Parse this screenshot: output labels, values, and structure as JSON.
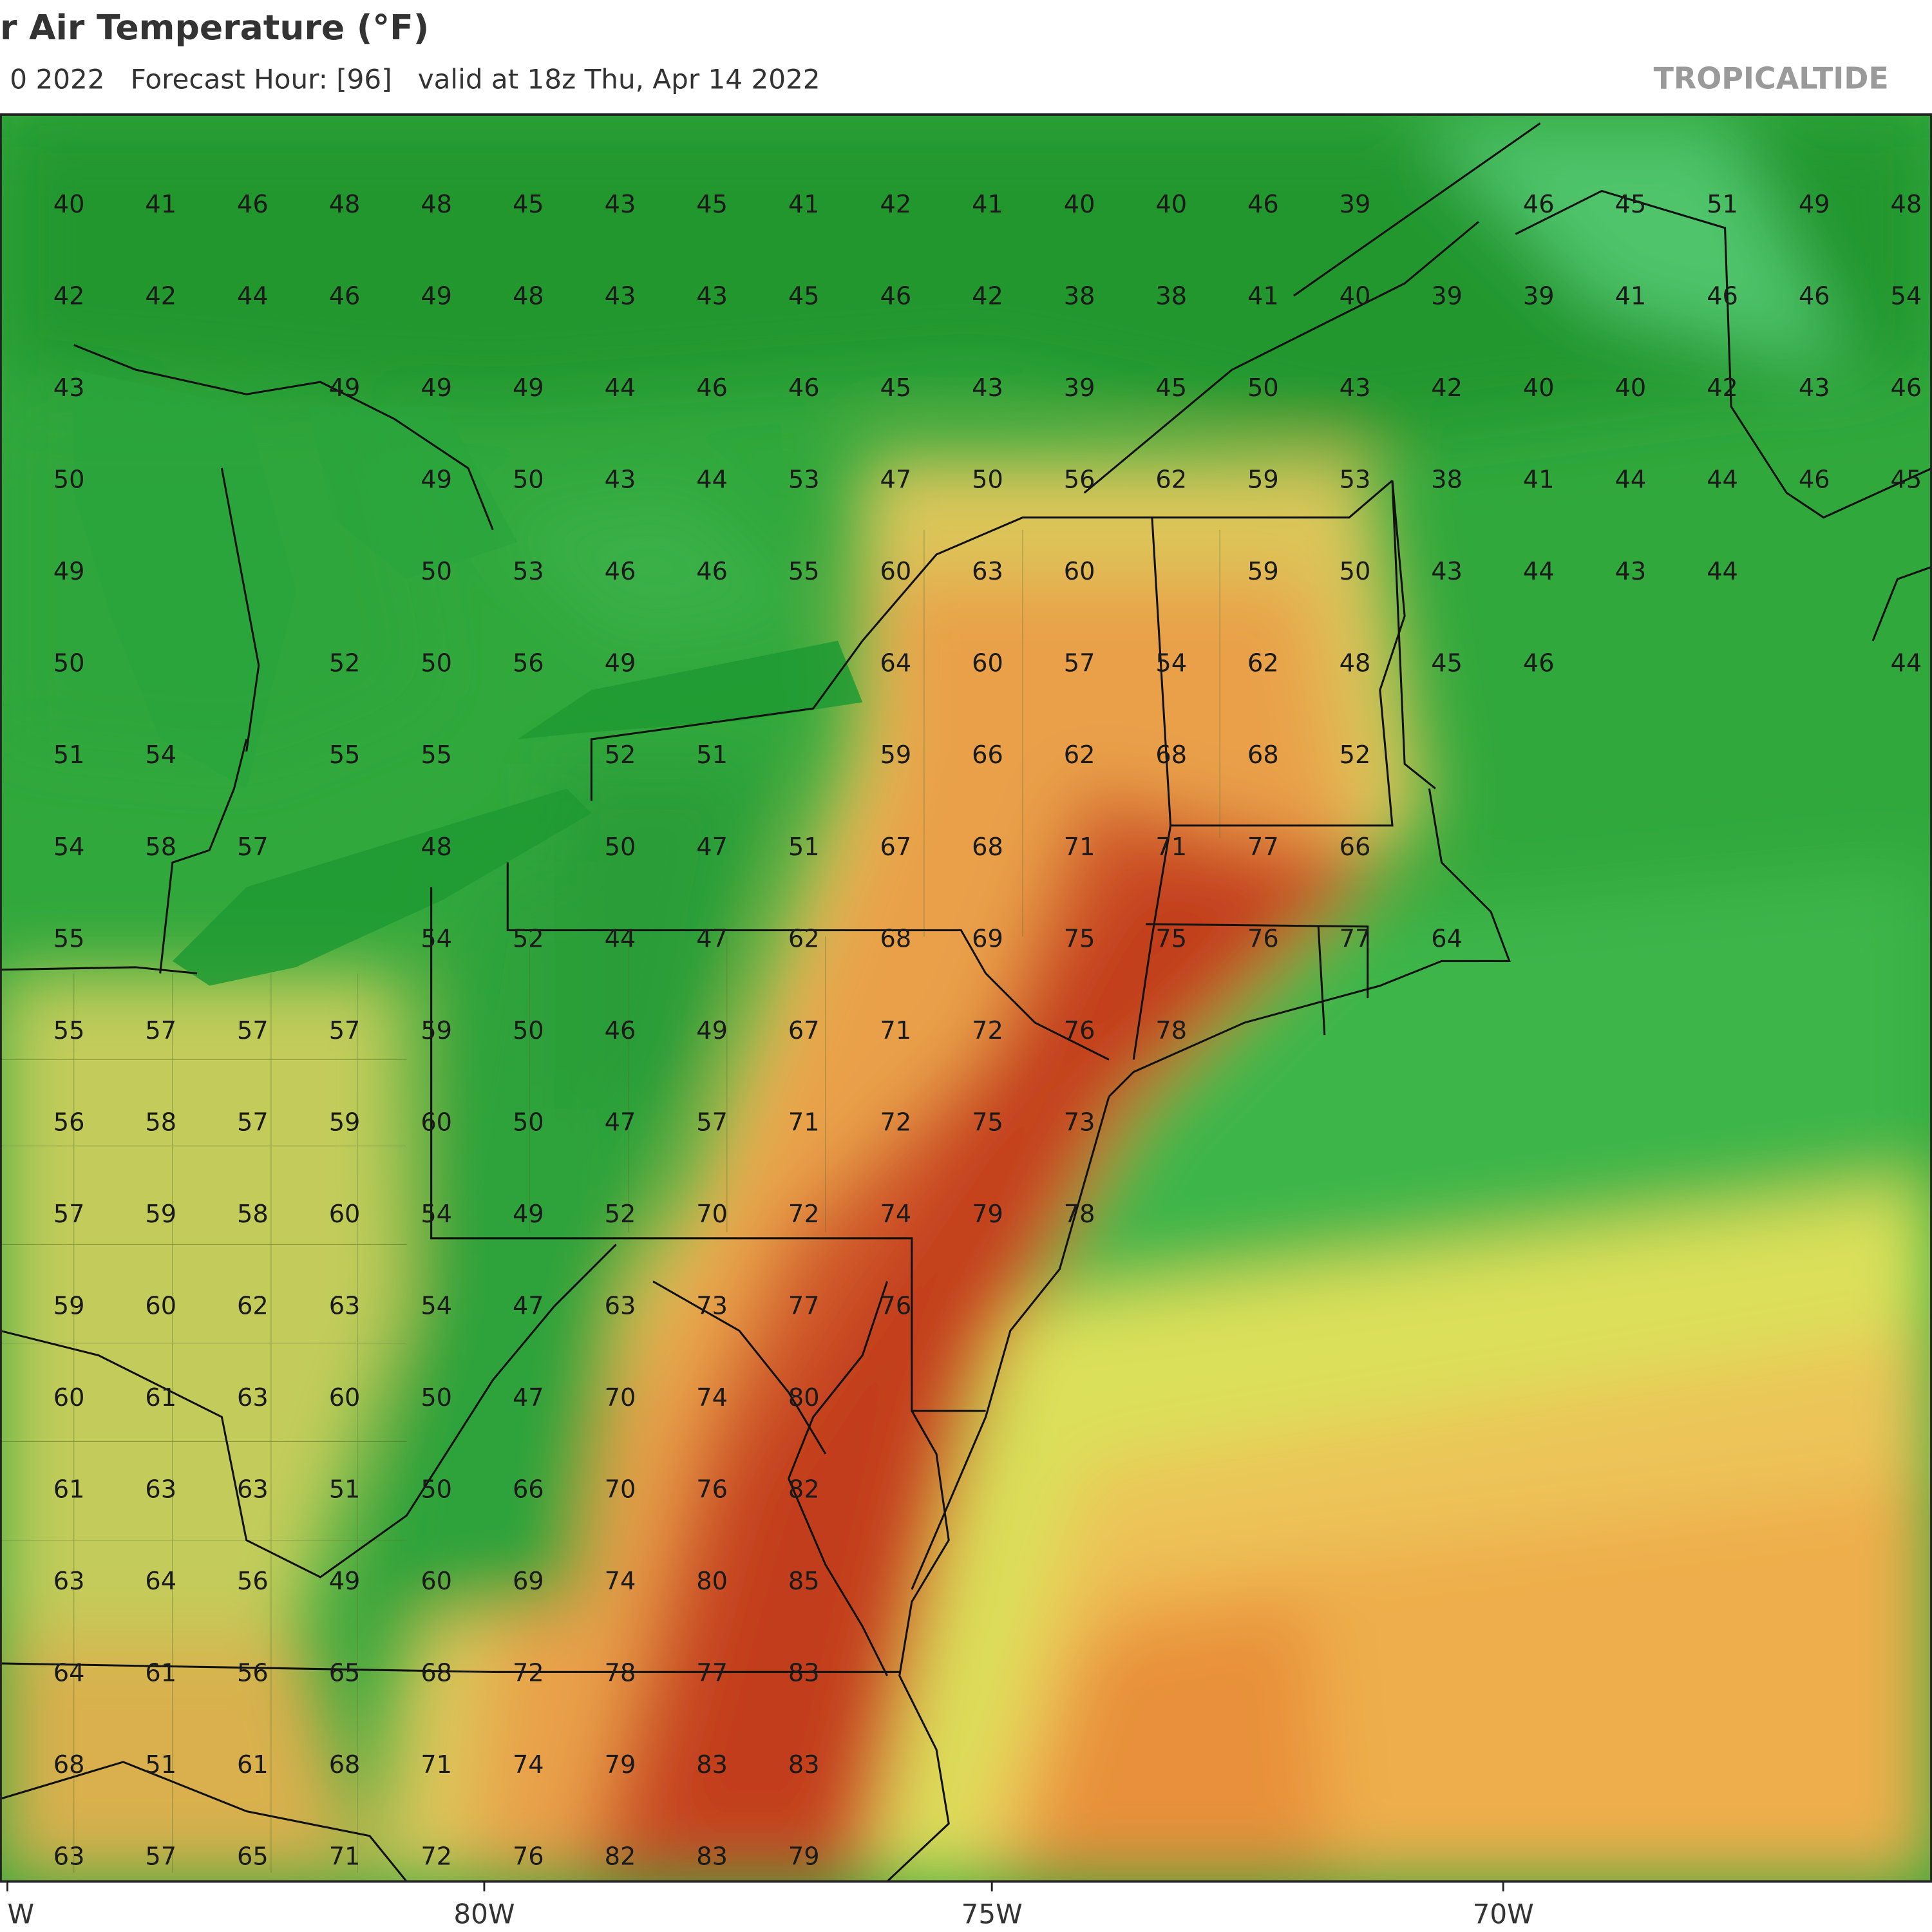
{
  "header": {
    "title": "r Air Temperature (°F)",
    "subtitle": "0 2022   Forecast Hour: [96]   valid at 18z Thu, Apr 14 2022",
    "brand": "TROPICALTIDE"
  },
  "map": {
    "longitude_labels": [
      "W",
      "80W",
      "75W",
      "70W"
    ],
    "temperatures": [
      [
        40,
        41,
        46,
        48,
        48,
        45,
        43,
        45,
        41,
        42,
        41,
        40,
        40,
        46,
        39,
        null,
        46,
        45,
        51,
        49,
        48
      ],
      [
        42,
        42,
        44,
        46,
        49,
        48,
        43,
        43,
        45,
        46,
        42,
        38,
        38,
        41,
        40,
        39,
        39,
        41,
        46,
        46,
        54
      ],
      [
        43,
        null,
        null,
        49,
        49,
        49,
        44,
        46,
        46,
        45,
        43,
        39,
        45,
        50,
        43,
        42,
        40,
        40,
        42,
        43,
        46
      ],
      [
        50,
        null,
        null,
        null,
        49,
        50,
        43,
        44,
        53,
        47,
        50,
        56,
        62,
        59,
        53,
        38,
        41,
        44,
        44,
        46,
        45
      ],
      [
        49,
        null,
        null,
        null,
        50,
        53,
        46,
        46,
        55,
        60,
        63,
        60,
        null,
        59,
        50,
        43,
        44,
        43,
        44,
        null,
        null
      ],
      [
        50,
        null,
        null,
        52,
        50,
        56,
        49,
        null,
        null,
        64,
        60,
        57,
        54,
        62,
        48,
        45,
        46,
        null,
        null,
        null,
        44
      ],
      [
        51,
        54,
        null,
        55,
        55,
        null,
        52,
        51,
        null,
        59,
        66,
        62,
        68,
        68,
        52,
        null,
        null,
        null,
        null,
        null,
        null
      ],
      [
        54,
        58,
        57,
        null,
        48,
        null,
        50,
        47,
        51,
        67,
        68,
        71,
        71,
        77,
        66,
        null,
        null,
        null,
        null,
        null,
        null
      ],
      [
        55,
        null,
        null,
        null,
        54,
        52,
        44,
        47,
        62,
        68,
        69,
        75,
        75,
        76,
        77,
        64,
        null,
        null,
        null,
        null,
        null
      ],
      [
        55,
        57,
        57,
        57,
        59,
        50,
        46,
        49,
        67,
        71,
        72,
        76,
        78,
        null,
        null,
        null,
        null,
        null,
        null,
        null,
        null
      ],
      [
        56,
        58,
        57,
        59,
        60,
        50,
        47,
        57,
        71,
        72,
        75,
        73,
        null,
        null,
        null,
        null,
        null,
        null,
        null,
        null,
        null
      ],
      [
        57,
        59,
        58,
        60,
        54,
        49,
        52,
        70,
        72,
        74,
        79,
        78,
        null,
        null,
        null,
        null,
        null,
        null,
        null,
        null,
        null
      ],
      [
        59,
        60,
        62,
        63,
        54,
        47,
        63,
        73,
        77,
        76,
        null,
        null,
        null,
        null,
        null,
        null,
        null,
        null,
        null,
        null,
        null
      ],
      [
        60,
        61,
        63,
        60,
        50,
        47,
        70,
        74,
        80,
        null,
        null,
        null,
        null,
        null,
        null,
        null,
        null,
        null,
        null,
        null,
        null
      ],
      [
        61,
        63,
        63,
        51,
        50,
        66,
        70,
        76,
        82,
        null,
        null,
        null,
        null,
        null,
        null,
        null,
        null,
        null,
        null,
        null,
        null
      ],
      [
        63,
        64,
        56,
        49,
        60,
        69,
        74,
        80,
        85,
        null,
        null,
        null,
        null,
        null,
        null,
        null,
        null,
        null,
        null,
        null,
        null
      ],
      [
        64,
        61,
        56,
        65,
        68,
        72,
        78,
        77,
        83,
        null,
        null,
        null,
        null,
        null,
        null,
        null,
        null,
        null,
        null,
        null,
        null
      ],
      [
        68,
        51,
        61,
        68,
        71,
        74,
        79,
        83,
        83,
        null,
        null,
        null,
        null,
        null,
        null,
        null,
        null,
        null,
        null,
        null,
        null
      ],
      [
        63,
        57,
        65,
        71,
        72,
        76,
        82,
        83,
        79,
        null,
        null,
        null,
        null,
        null,
        null,
        null,
        null,
        null,
        null,
        null,
        null
      ]
    ]
  }
}
